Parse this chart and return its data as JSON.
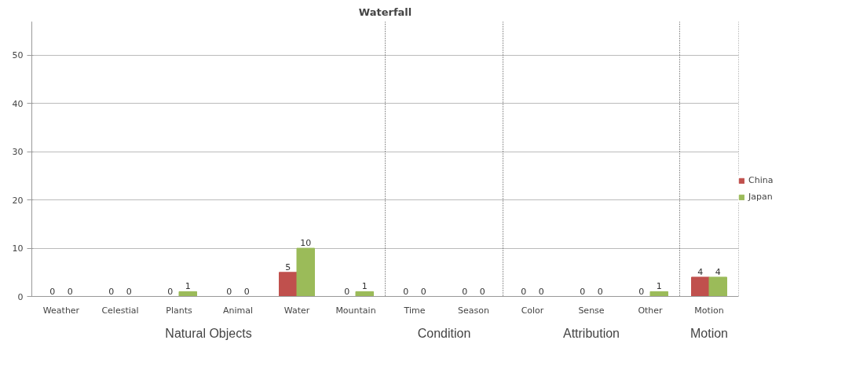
{
  "chart_data": {
    "type": "bar",
    "title": "Waterfall",
    "categories": [
      "Weather",
      "Celestial",
      "Plants",
      "Animal",
      "Water",
      "Mountain",
      "Time",
      "Season",
      "Color",
      "Sense",
      "Other",
      "Motion"
    ],
    "series": [
      {
        "name": "China",
        "color": "#c0504d",
        "values": [
          0,
          0,
          0,
          0,
          5,
          0,
          0,
          0,
          0,
          0,
          0,
          4
        ]
      },
      {
        "name": "Japan",
        "color": "#9bbb59",
        "values": [
          0,
          0,
          1,
          0,
          10,
          1,
          0,
          0,
          0,
          0,
          1,
          4
        ]
      }
    ],
    "ylim": [
      0,
      57
    ],
    "yticks": [
      0,
      10,
      20,
      30,
      40,
      50
    ],
    "grid": "y",
    "legend": "right",
    "data_labels": true,
    "annotations": [
      "Natural Objects",
      "Condition",
      "Attribution",
      "Motion"
    ]
  }
}
